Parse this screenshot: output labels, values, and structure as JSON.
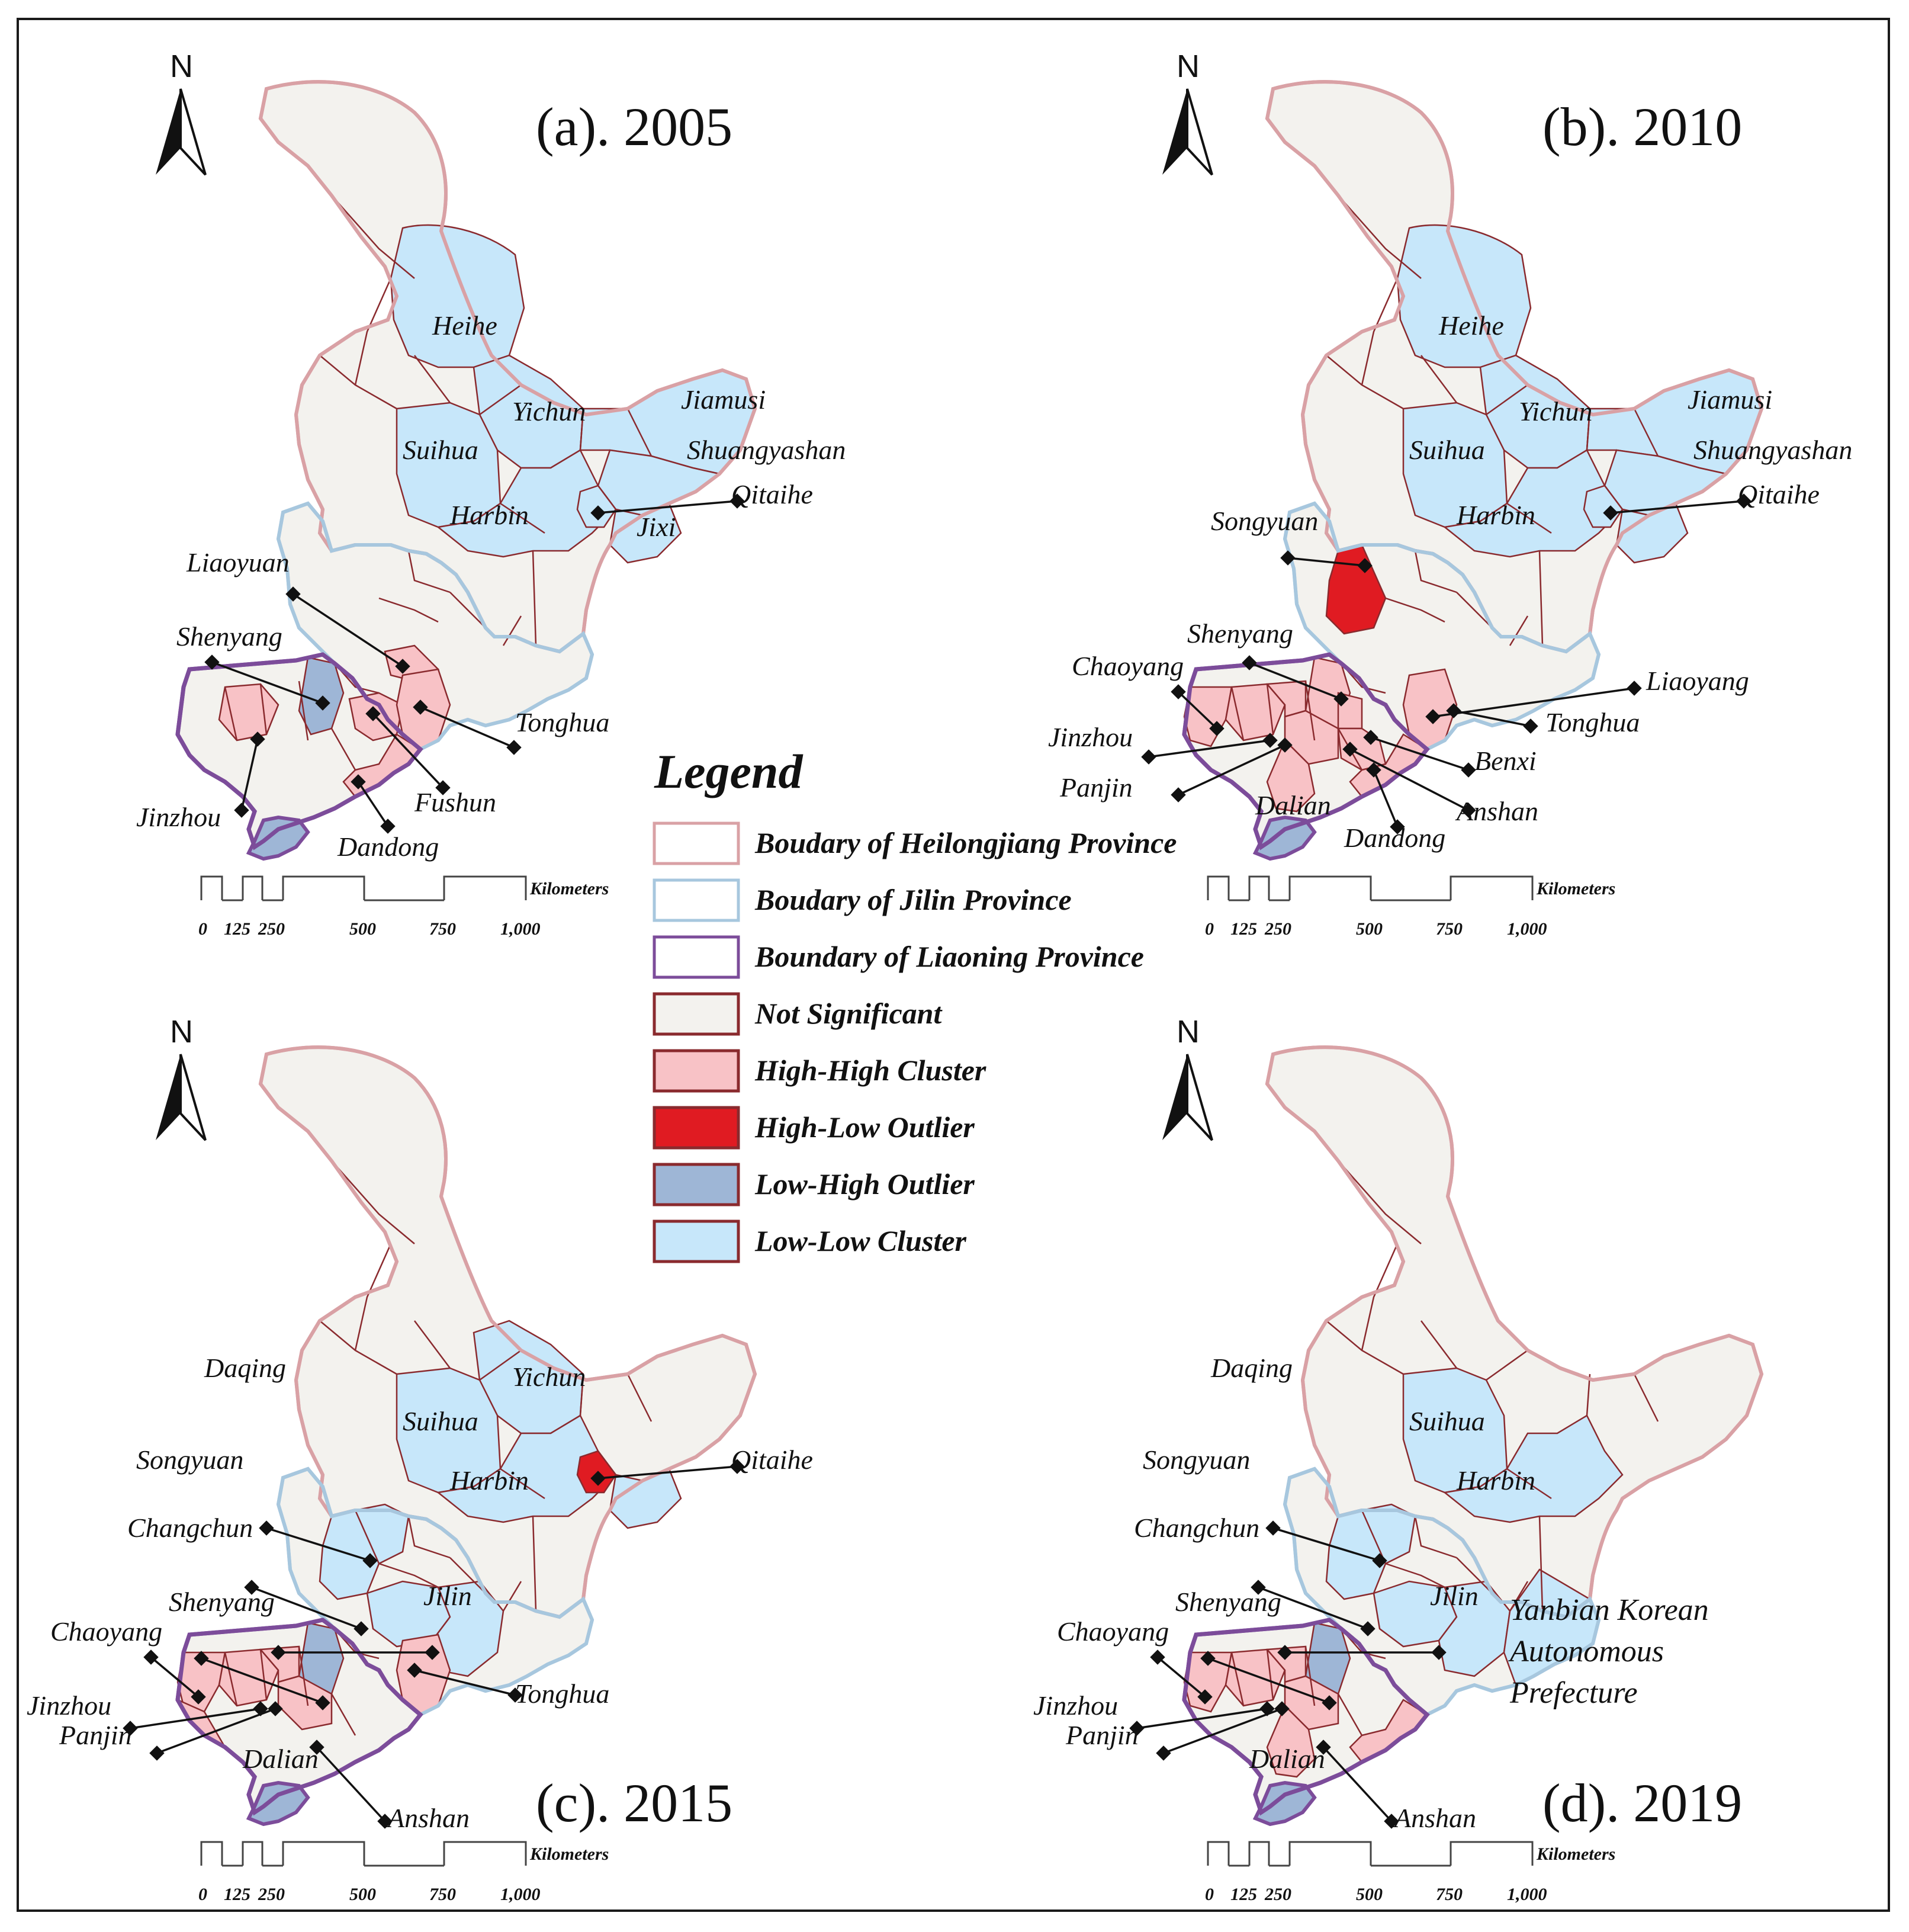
{
  "colors": {
    "heilongjiang_boundary": "#d9a1a5",
    "jilin_boundary": "#a7c7de",
    "liaoning_boundary": "#7c4c9a",
    "not_significant": "#f3f2ee",
    "high_high": "#f8c2c6",
    "high_low": "#e01b22",
    "low_high": "#9eb6d6",
    "low_low": "#c7e7fa",
    "pref_boundary": "#8a2a2e"
  },
  "legend": {
    "title": "Legend",
    "items": [
      {
        "label": "Boudary of Heilongjiang Province",
        "fill": "#ffffff",
        "stroke": "#d9a1a5"
      },
      {
        "label": "Boudary of Jilin Province",
        "fill": "#ffffff",
        "stroke": "#a7c7de"
      },
      {
        "label": "Boundary of Liaoning Province",
        "fill": "#ffffff",
        "stroke": "#7c4c9a"
      },
      {
        "label": "Not Significant",
        "fill": "#f3f2ee",
        "stroke": "#8a2a2e"
      },
      {
        "label": "High-High Cluster",
        "fill": "#f8c2c6",
        "stroke": "#8a2a2e"
      },
      {
        "label": "High-Low Outlier",
        "fill": "#e01b22",
        "stroke": "#8a2a2e"
      },
      {
        "label": "Low-High Outlier",
        "fill": "#9eb6d6",
        "stroke": "#8a2a2e"
      },
      {
        "label": "Low-Low Cluster",
        "fill": "#c7e7fa",
        "stroke": "#8a2a2e"
      }
    ]
  },
  "north_letter": "N",
  "scalebar": {
    "ticks": [
      "0",
      "125",
      "250",
      "500",
      "750",
      "1,000"
    ],
    "unit": "Kilometers"
  },
  "panels": [
    {
      "title": "(a). 2005",
      "labels": [
        "Heihe",
        "Yichun",
        "Jiamusi",
        "Suihua",
        "Shuangyashan",
        "Qitaihe",
        "Harbin",
        "Jixi",
        "Liaoyuan",
        "Shenyang",
        "Tonghua",
        "Fushun",
        "Jinzhou",
        "Dandong"
      ],
      "classes": [
        "Not Significant",
        "Low-Low Cluster",
        "High-High Cluster",
        "Low-High Outlier"
      ]
    },
    {
      "title": "(b). 2010",
      "labels": [
        "Heihe",
        "Yichun",
        "Jiamusi",
        "Suihua",
        "Shuangyashan",
        "Qitaihe",
        "Songyuan",
        "Harbin",
        "Shenyang",
        "Chaoyang",
        "Liaoyang",
        "Tonghua",
        "Jinzhou",
        "Benxi",
        "Panjin",
        "Dalian",
        "Anshan",
        "Dandong"
      ],
      "classes": [
        "Not Significant",
        "Low-Low Cluster",
        "High-High Cluster",
        "High-Low Outlier"
      ]
    },
    {
      "title": "(c). 2015",
      "labels": [
        "Yichun",
        "Daqing",
        "Suihua",
        "Songyuan",
        "Harbin",
        "Qitaihe",
        "Changchun",
        "Jilin",
        "Shenyang",
        "Chaoyang",
        "Tonghua",
        "Jinzhou",
        "Panjin",
        "Dalian",
        "Anshan"
      ],
      "classes": [
        "Not Significant",
        "Low-Low Cluster",
        "High-High Cluster",
        "High-Low Outlier",
        "Low-High Outlier"
      ]
    },
    {
      "title": "(d). 2019",
      "labels": [
        "Daqing",
        "Suihua",
        "Songyuan",
        "Harbin",
        "Changchun",
        "Jilin",
        "Yanbian Korean",
        "Autonomous",
        "Prefecture",
        "Shenyang",
        "Chaoyang",
        "Jinzhou",
        "Panjin",
        "Dalian",
        "Anshan"
      ],
      "classes": [
        "Not Significant",
        "Low-Low Cluster",
        "High-High Cluster",
        "Low-High Outlier"
      ]
    }
  ]
}
